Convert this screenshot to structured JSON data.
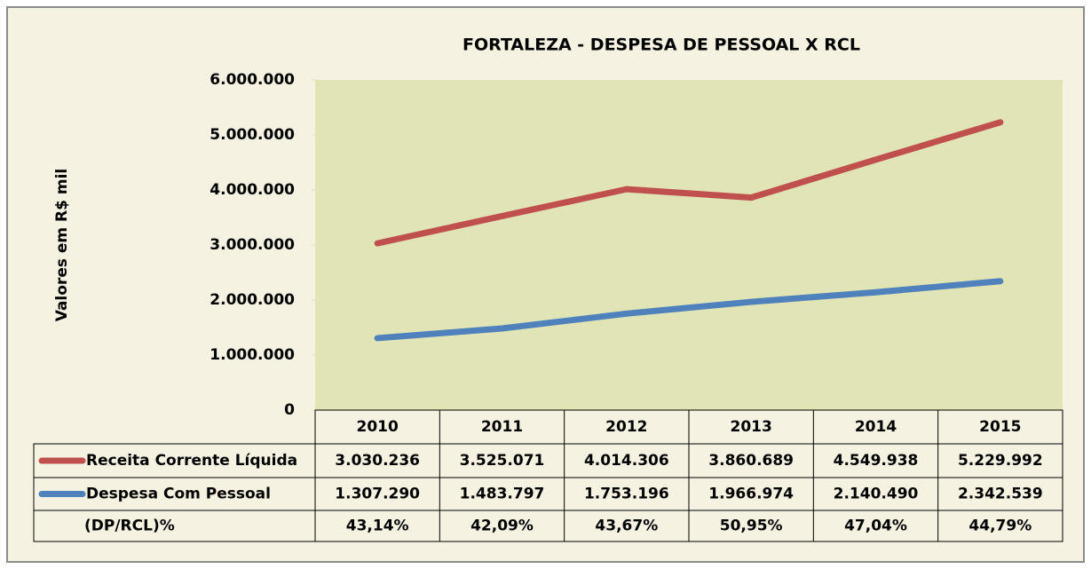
{
  "chart_data": {
    "type": "line",
    "title": "FORTALEZA - DESPESA DE PESSOAL X RCL",
    "y_label": "Valores em R$ mil",
    "categories": [
      "2010",
      "2011",
      "2012",
      "2013",
      "2014",
      "2015"
    ],
    "series": [
      {
        "name": "Receita Corrente Líquida",
        "color": "#c0504d",
        "values": [
          3030236,
          3525071,
          4014306,
          3860689,
          4549938,
          5229992
        ],
        "value_labels": [
          "3.030.236",
          "3.525.071",
          "4.014.306",
          "3.860.689",
          "4.549.938",
          "5.229.992"
        ]
      },
      {
        "name": "Despesa Com Pessoal",
        "color": "#4f81bd",
        "values": [
          1307290,
          1483797,
          1753196,
          1966974,
          2140490,
          2342539
        ],
        "value_labels": [
          "1.307.290",
          "1.483.797",
          "1.753.196",
          "1.966.974",
          "2.140.490",
          "2.342.539"
        ]
      }
    ],
    "ratio": {
      "name": "(DP/RCL)%",
      "values": [
        43.14,
        42.09,
        43.67,
        50.95,
        47.04,
        44.79
      ],
      "value_labels": [
        "43,14%",
        "42,09%",
        "43,67%",
        "50,95%",
        "47,04%",
        "44,79%"
      ]
    },
    "ylim": [
      0,
      6000000
    ],
    "yticks": [
      0,
      {
        "value": 1000000,
        "label": "1.000.000"
      },
      {
        "value": 2000000,
        "label": "2.000.000"
      },
      {
        "value": 3000000,
        "label": "3.000.000"
      },
      {
        "value": 4000000,
        "label": "4.000.000"
      },
      {
        "value": 5000000,
        "label": "5.000.000"
      },
      {
        "value": 6000000,
        "label": "6.000.000"
      }
    ],
    "grid": false,
    "plot_background": "#e1e4b4"
  }
}
